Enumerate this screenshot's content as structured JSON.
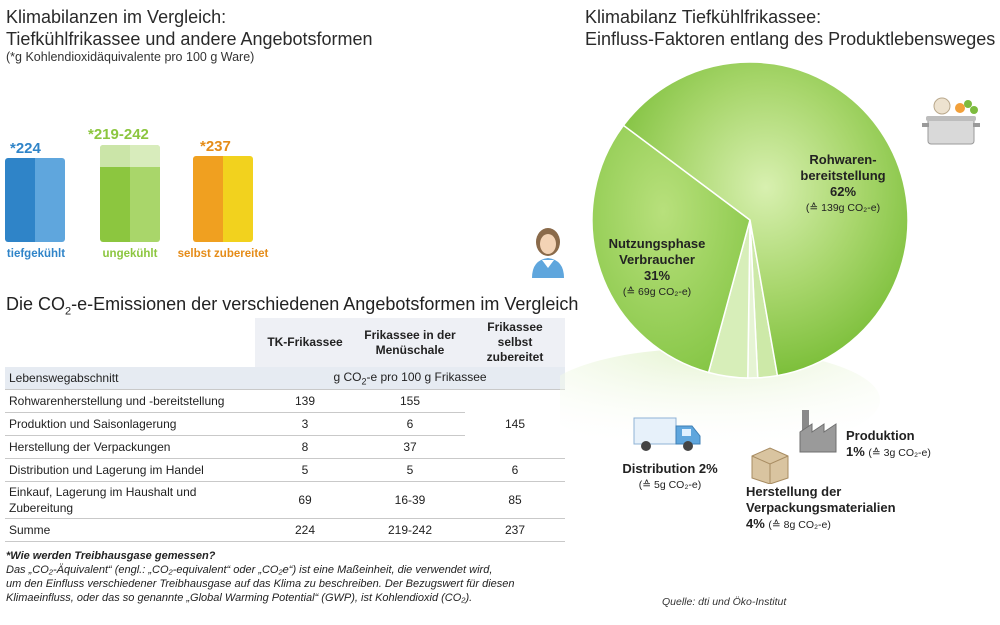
{
  "left": {
    "title_line1": "Klimabilanzen im Vergleich:",
    "title_line2": "Tiefkühlfrikassee und andere Angebotsformen",
    "subtitle": "(*g Kohlendioxidäquivalente pro 100 g Ware)"
  },
  "chart_data": [
    {
      "type": "bar",
      "title": "Klimabilanzen im Vergleich: Tiefkühlfrikassee und andere Angebotsformen",
      "subtitle": "(*g Kohlendioxidäquivalente pro 100 g Ware)",
      "categories": [
        "tiefgekühlt",
        "ungekühlt",
        "selbst zubereitet"
      ],
      "values": [
        224,
        242,
        237
      ],
      "range_low": [
        224,
        219,
        237
      ],
      "value_labels": [
        "*224",
        "*219-242",
        "*237"
      ],
      "colors": [
        "#2f84c8",
        "#8cc63f",
        "#f0a020"
      ]
    },
    {
      "type": "pie",
      "title": "Klimabilanz Tiefkühlfrikassee: Einfluss-Faktoren entlang des Produktlebensweges",
      "slices": [
        {
          "label": "Rohwarenbereitstellung",
          "percent": 62,
          "grams": 139
        },
        {
          "label": "Nutzungsphase Verbraucher",
          "percent": 31,
          "grams": 69
        },
        {
          "label": "Distribution",
          "percent": 2,
          "grams": 5
        },
        {
          "label": "Produktion",
          "percent": 1,
          "grams": 3
        },
        {
          "label": "Herstellung der Verpackungsmaterialien",
          "percent": 4,
          "grams": 8
        }
      ]
    }
  ],
  "bars": {
    "val_1": "*224",
    "lbl_1": "tiefgekühlt",
    "val_2": "*219-242",
    "lbl_2": "ungekühlt",
    "val_3": "*237",
    "lbl_3": "selbst zubereitet"
  },
  "table": {
    "title_pre": "Die CO",
    "title_sub": "2",
    "title_post": "-e-Emissionen der verschiedenen Angebotsformen im Vergleich",
    "headers": [
      "TK-Frikassee",
      "Frikassee in der Menüschale",
      "Frikassee selbst zubereitet"
    ],
    "unit_label": "Lebenswegabschnitt",
    "unit_pre": "g CO",
    "unit_sub": "2",
    "unit_post": "-e pro 100 g Frikassee",
    "rows": [
      {
        "label": "Rohwarenherstellung und -bereitstellung",
        "tk": "139",
        "menu": "155"
      },
      {
        "label": "Produktion und Saisonlagerung",
        "tk": "3",
        "menu": "6"
      },
      {
        "label": "Herstellung der Verpackungen",
        "tk": "8",
        "menu": "37"
      },
      {
        "label": "Distribution und Lagerung im Handel",
        "tk": "5",
        "menu": "5",
        "self": "6"
      },
      {
        "label": "Einkauf, Lagerung im Haushalt und Zubereitung",
        "tk": "69",
        "menu": "16-39",
        "self": "85"
      },
      {
        "label": "Summe",
        "tk": "224",
        "menu": "219-242",
        "self": "237"
      }
    ],
    "merged_self": "145"
  },
  "note": {
    "heading": "*Wie werden Treibhausgase gemessen?",
    "line1": "Das „CO₂-Äquivalent“ (engl.: „CO₂-equivalent“ oder „CO₂e“) ist eine Maßeinheit, die verwendet wird,",
    "line2": "um den Einfluss verschiedener Treibhausgase auf das Klima zu beschreiben. Der Bezugswert für diesen",
    "line3": "Klimaeinfluss, oder das so genannte „Global Warming Potential“ (GWP), ist Kohlendioxid (CO₂)."
  },
  "right": {
    "title_line1": "Klimabilanz Tiefkühlfrikassee:",
    "title_line2": "Einfluss-Faktoren entlang des Produktlebensweges",
    "roh_l1": "Rohwaren-",
    "roh_l2": "bereitstellung",
    "roh_pct": "62%",
    "roh_sub": "(≙ 139g CO₂-e)",
    "nutz_l1": "Nutzungsphase",
    "nutz_l2": "Verbraucher",
    "nutz_pct": "31%",
    "nutz_sub": "(≙ 69g CO₂-e)",
    "dist_l1": "Distribution 2%",
    "dist_sub": "(≙ 5g CO₂-e)",
    "prod_l1": "Produktion",
    "prod_pct": "1%",
    "prod_sub": "(≙ 3g CO₂-e)",
    "verp_l1": "Herstellung der",
    "verp_l2": "Verpackungsmaterialien",
    "verp_pct": "4%",
    "verp_sub": "(≙ 8g CO₂-e)",
    "source": "Quelle: dti und Öko-Institut"
  },
  "colors": {
    "blue": "#2f84c8",
    "green": "#8cc63f",
    "orange": "#f0a020",
    "pie_green": "#9bd15a"
  },
  "icons": [
    "woman-icon",
    "cooking-pot-icon",
    "truck-icon",
    "factory-icon",
    "box-icon"
  ]
}
